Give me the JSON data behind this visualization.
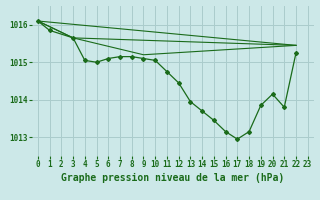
{
  "title": "Graphe pression niveau de la mer (hPa)",
  "background_color": "#cce8e8",
  "grid_color": "#aacccc",
  "line_color": "#1a6b1a",
  "xlim": [
    -0.5,
    23.5
  ],
  "ylim": [
    1012.5,
    1016.5
  ],
  "yticks": [
    1013,
    1014,
    1015,
    1016
  ],
  "xticks": [
    0,
    1,
    2,
    3,
    4,
    5,
    6,
    7,
    8,
    9,
    10,
    11,
    12,
    13,
    14,
    15,
    16,
    17,
    18,
    19,
    20,
    21,
    22,
    23
  ],
  "series_main": {
    "x": [
      0,
      1,
      3,
      4,
      5,
      6,
      7,
      8,
      9,
      10,
      11,
      12,
      13,
      14,
      15,
      16,
      17,
      18,
      19,
      20,
      21,
      22
    ],
    "y": [
      1016.1,
      1015.85,
      1015.65,
      1015.05,
      1015.0,
      1015.1,
      1015.15,
      1015.15,
      1015.1,
      1015.05,
      1014.75,
      1014.45,
      1013.95,
      1013.7,
      1013.45,
      1013.15,
      1012.95,
      1013.15,
      1013.85,
      1014.15,
      1013.8,
      1015.25
    ]
  },
  "series_line1": {
    "x": [
      0,
      3,
      22
    ],
    "y": [
      1016.1,
      1015.65,
      1015.45
    ]
  },
  "series_line2": {
    "x": [
      0,
      3,
      22
    ],
    "y": [
      1016.1,
      1015.65,
      1015.45
    ]
  },
  "series_line3": {
    "x": [
      0,
      22
    ],
    "y": [
      1016.1,
      1015.45
    ]
  },
  "font_color": "#1a6b1a",
  "font_size_label": 7,
  "font_size_ticks": 5.5
}
